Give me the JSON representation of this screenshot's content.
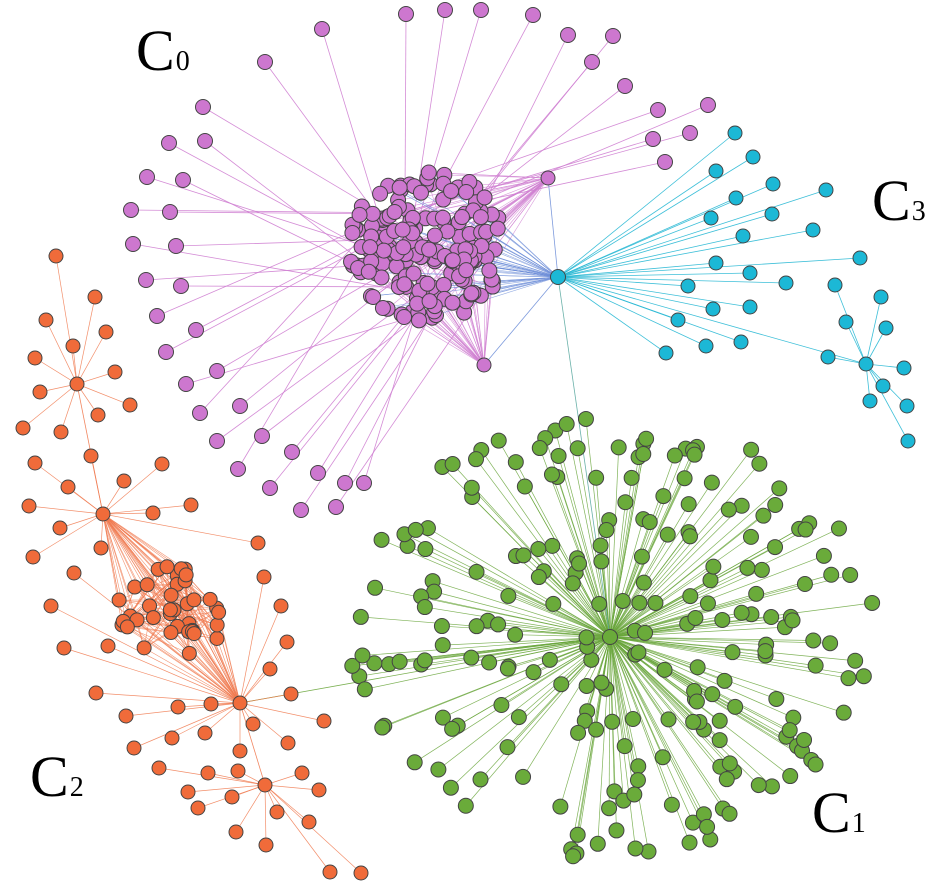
{
  "clusters": [
    {
      "id": "C0",
      "letter": "C",
      "index": "0",
      "color": "#cd77cf",
      "edge_color": "#cf7fd1",
      "hub_edge_color": "#6f8fd8"
    },
    {
      "id": "C1",
      "letter": "C",
      "index": "1",
      "color": "#6aab3a",
      "edge_color": "#6aa63c"
    },
    {
      "id": "C2",
      "letter": "C",
      "index": "2",
      "color": "#f06b3a",
      "edge_color": "#f07a50"
    },
    {
      "id": "C3",
      "letter": "C",
      "index": "3",
      "color": "#1cb8d6",
      "edge_color": "#28b8d4"
    }
  ],
  "node_stroke": "#444444"
}
